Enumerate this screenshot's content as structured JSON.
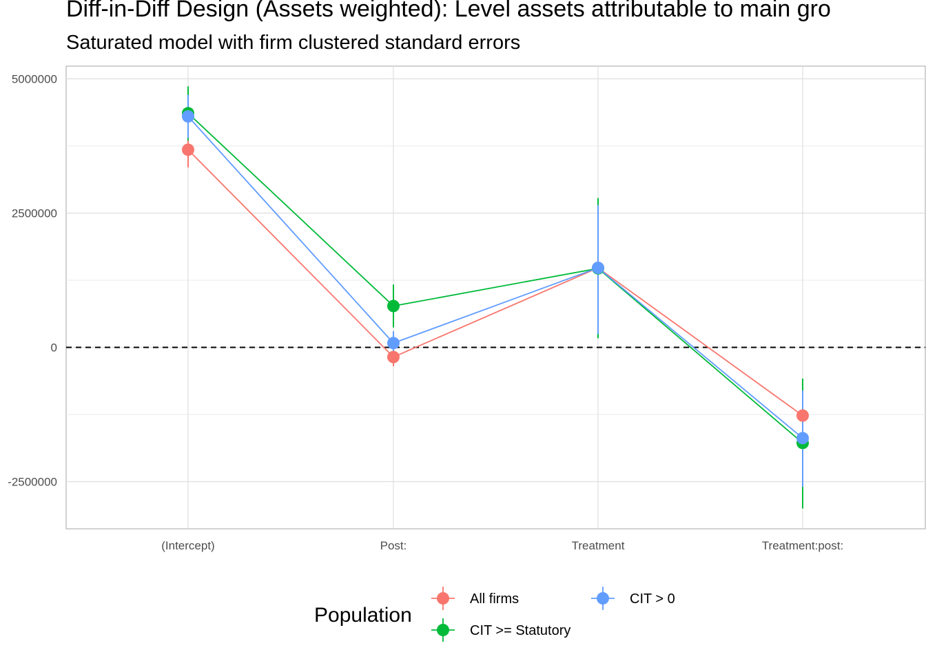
{
  "chart_data": {
    "type": "scatter",
    "title": "Diff-in-Diff Design (Assets weighted): Level assets attributable to main gro",
    "subtitle": "Saturated model with firm clustered standard errors",
    "xlabel": "",
    "ylabel": "",
    "categories": [
      "(Intercept)",
      "Post:",
      "Treatment",
      "Treatment:post:"
    ],
    "ylim": [
      -3300000,
      5250000
    ],
    "yticks": [
      -2500000,
      0,
      2500000,
      5000000
    ],
    "ytick_labels": [
      "-2500000",
      "0",
      "2500000",
      "5000000"
    ],
    "reference_line": {
      "y": 0,
      "style": "dashed"
    },
    "grid": true,
    "legend": {
      "title": "Population",
      "position": "bottom"
    },
    "series": [
      {
        "name": "All firms",
        "color": "#F8766D",
        "values": [
          3680000,
          -180000,
          1480000,
          -1270000
        ],
        "lower": [
          3350000,
          -350000,
          1300000,
          -1500000
        ],
        "upper": [
          4000000,
          -50000,
          1650000,
          -1050000
        ]
      },
      {
        "name": "CIT >= Statutory",
        "color": "#00BA38",
        "values": [
          4360000,
          770000,
          1470000,
          -1780000
        ],
        "lower": [
          3850000,
          370000,
          170000,
          -3000000
        ],
        "upper": [
          4860000,
          1170000,
          2780000,
          -580000
        ]
      },
      {
        "name": "CIT > 0",
        "color": "#619CFF",
        "values": [
          4300000,
          80000,
          1480000,
          -1690000
        ],
        "lower": [
          3900000,
          -100000,
          250000,
          -2600000
        ],
        "upper": [
          4700000,
          300000,
          2650000,
          -800000
        ]
      }
    ]
  }
}
